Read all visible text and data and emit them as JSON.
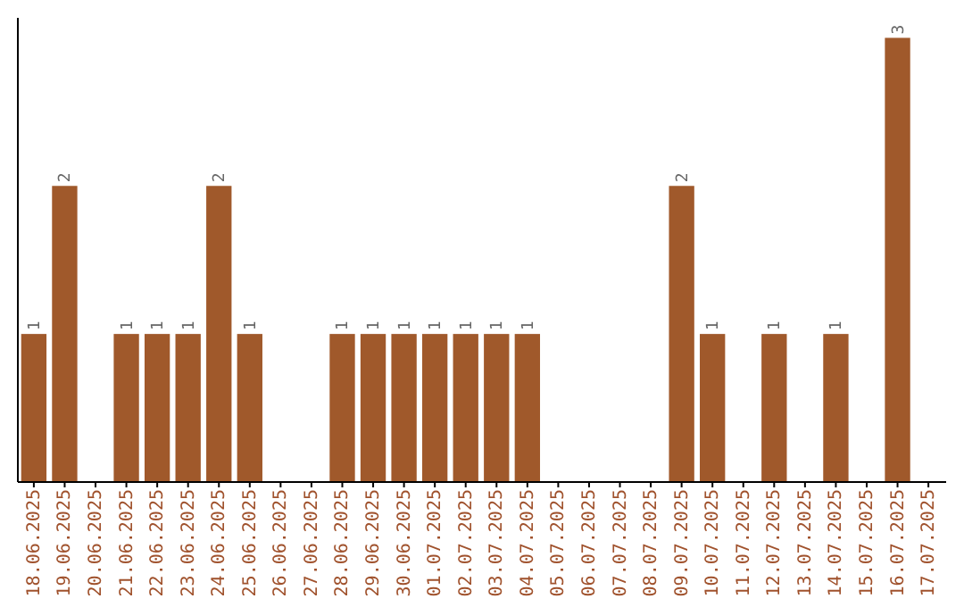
{
  "chart_data": {
    "type": "bar",
    "categories": [
      "18.06.2025",
      "19.06.2025",
      "20.06.2025",
      "21.06.2025",
      "22.06.2025",
      "23.06.2025",
      "24.06.2025",
      "25.06.2025",
      "26.06.2025",
      "27.06.2025",
      "28.06.2025",
      "29.06.2025",
      "30.06.2025",
      "01.07.2025",
      "02.07.2025",
      "03.07.2025",
      "04.07.2025",
      "05.07.2025",
      "06.07.2025",
      "07.07.2025",
      "08.07.2025",
      "09.07.2025",
      "10.07.2025",
      "11.07.2025",
      "12.07.2025",
      "13.07.2025",
      "14.07.2025",
      "15.07.2025",
      "16.07.2025",
      "17.07.2025"
    ],
    "values": [
      1,
      2,
      0,
      1,
      1,
      1,
      2,
      1,
      0,
      0,
      1,
      1,
      1,
      1,
      1,
      1,
      1,
      0,
      0,
      0,
      0,
      2,
      1,
      0,
      1,
      0,
      1,
      0,
      3,
      0
    ],
    "value_labels": [
      "1",
      "2",
      null,
      "1",
      "1",
      "1",
      "2",
      "1",
      null,
      null,
      "1",
      "1",
      "1",
      "1",
      "1",
      "1",
      "1",
      null,
      null,
      null,
      null,
      "2",
      "1",
      null,
      "1",
      null,
      "1",
      null,
      "3",
      null
    ],
    "color": "#a0592b",
    "tick_labels": "x"
  }
}
